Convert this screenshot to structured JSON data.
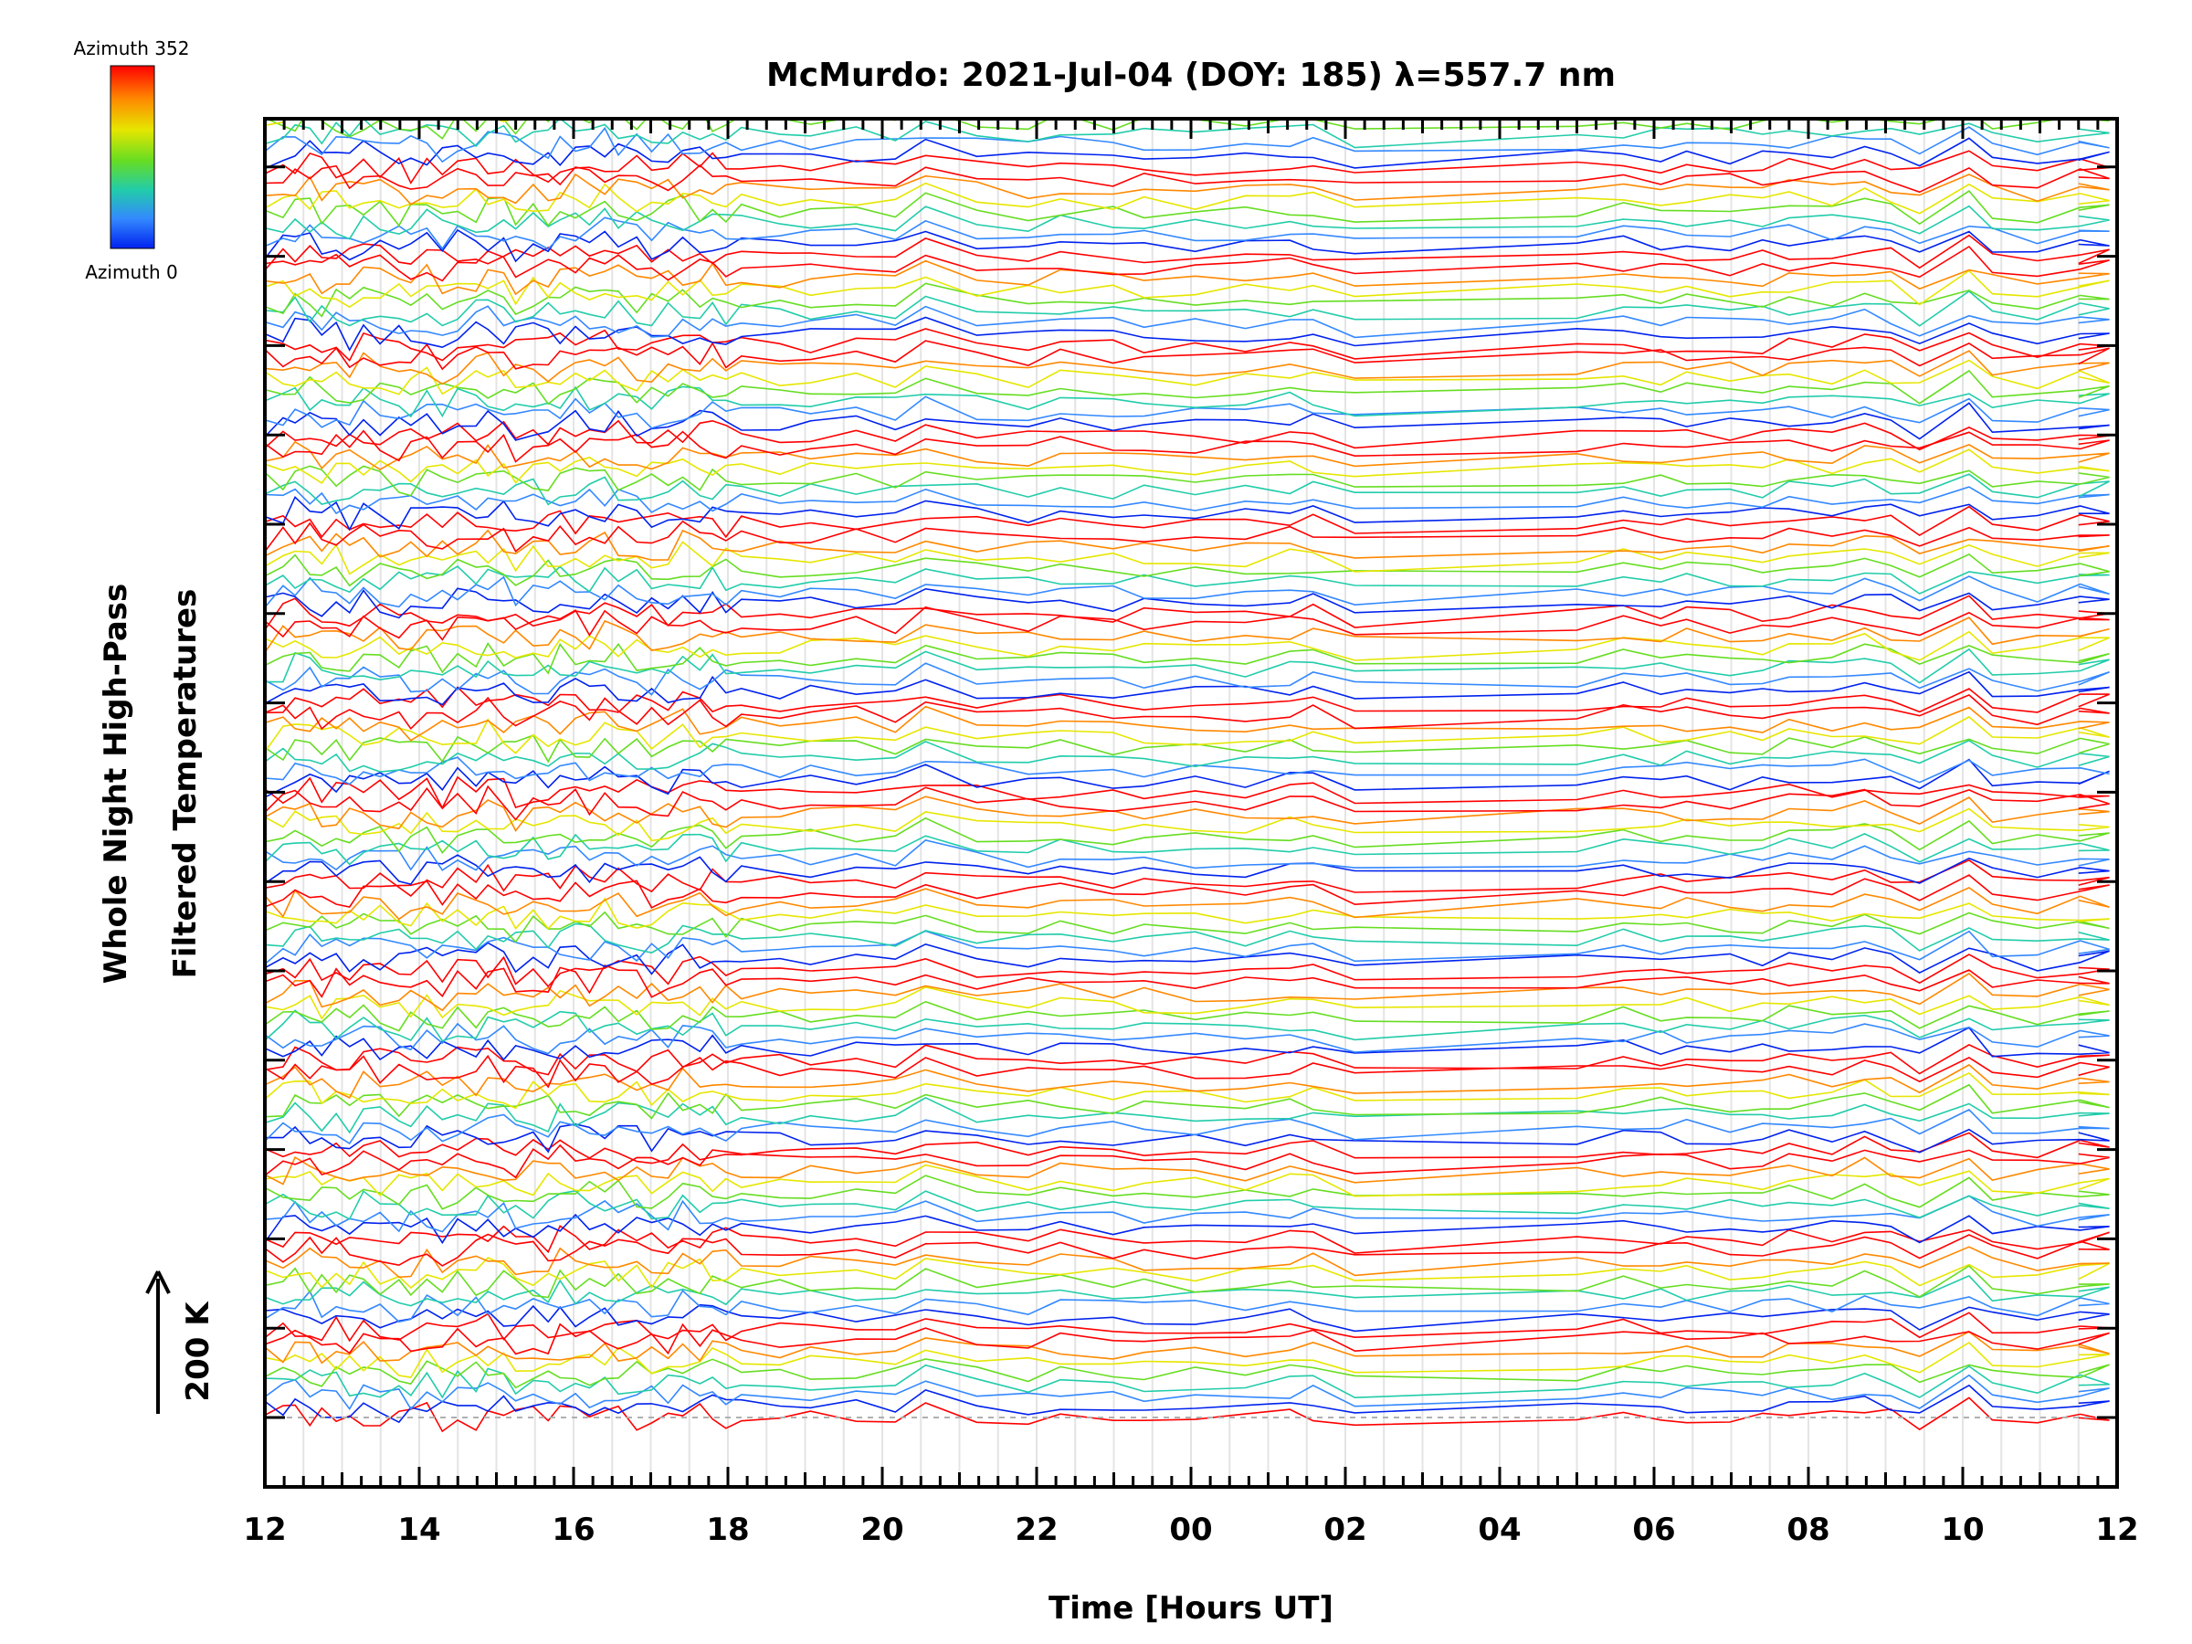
{
  "chart_data": {
    "type": "line",
    "title": "McMurdo: 2021-Jul-04 (DOY: 185) λ=557.7 nm",
    "xlabel": "Time [Hours UT]",
    "ylabel_line1": "Whole Night High-Pass",
    "ylabel_line2": "Filtered Temperatures",
    "x_unit": "hours since 12 UT",
    "xlim": [
      0,
      24
    ],
    "x_ticks": [
      0,
      2,
      4,
      6,
      8,
      10,
      12,
      14,
      16,
      18,
      20,
      22,
      24
    ],
    "x_tick_labels": [
      "12",
      "14",
      "16",
      "18",
      "20",
      "22",
      "00",
      "02",
      "04",
      "06",
      "08",
      "10",
      "12"
    ],
    "y_ticks_count": 15,
    "scale_bar_label": "200 K",
    "colorbar": {
      "top_label": "Azimuth 352",
      "bottom_label": "Azimuth 0",
      "colors": [
        "#ff0000",
        "#ff8800",
        "#e6e600",
        "#66dd22",
        "#22ccaa",
        "#3388ff",
        "#0022ee"
      ]
    },
    "series_groups": 15,
    "azimuth_series_per_group": 8,
    "observation_gaps_hours": [
      [
        14.4,
        17.0
      ]
    ],
    "common_features_hours": [
      8.5,
      14.2,
      20.6,
      21.5,
      22.1,
      22.8
    ],
    "note": "Stacked high-pass filtered temperature traces, colored by azimuth (0–352°); individual values not labeled"
  }
}
